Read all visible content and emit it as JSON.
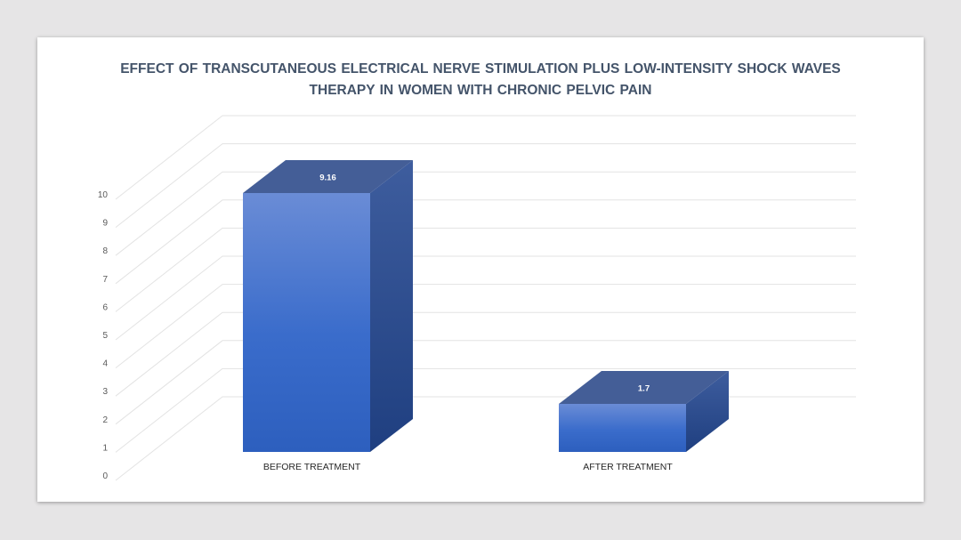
{
  "chart_data": {
    "type": "bar",
    "title_lines": [
      "EFFECT OF TRANSCUTANEOUS ELECTRICAL NERVE STIMULATION PLUS LOW-INTENSITY SHOCK WAVES",
      "THERAPY IN WOMEN WITH CHRONIC PELVIC PAIN"
    ],
    "categories": [
      "BEFORE TREATMENT",
      "AFTER TREATMENT"
    ],
    "values": [
      9.16,
      1.7
    ],
    "data_labels": [
      "9.16",
      "1.7"
    ],
    "y_ticks": [
      "0",
      "1",
      "2",
      "3",
      "4",
      "5",
      "6",
      "7",
      "8",
      "9",
      "10"
    ],
    "ylim": [
      0,
      10
    ],
    "grid": true,
    "style": "3d",
    "bar_color": "#4472c4"
  }
}
